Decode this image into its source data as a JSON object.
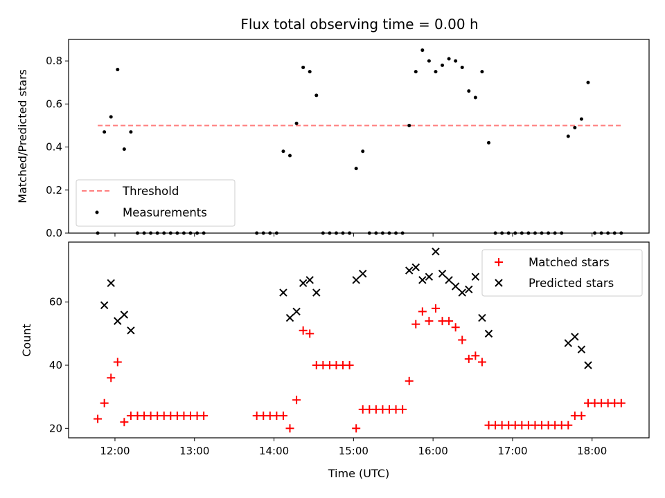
{
  "chart_data": [
    {
      "type": "scatter",
      "title": "Flux total observing time = 0.00 h",
      "xlabel": "",
      "ylabel": "Matched/Predicted stars",
      "ylim": [
        0,
        0.9
      ],
      "yticks": [
        0.0,
        0.2,
        0.4,
        0.6,
        0.8
      ],
      "ytick_labels": [
        "0.0",
        "0.2",
        "0.4",
        "0.6",
        "0.8"
      ],
      "xlim": [
        "11:25",
        "18:43"
      ],
      "grid": false,
      "legend_position": "lower-left",
      "threshold": {
        "name": "Threshold",
        "y": 0.5,
        "x_start": "11:47",
        "x_end": "18:22",
        "color": "#ff7f7f"
      },
      "series": [
        {
          "name": "Measurements",
          "color": "#000000",
          "points": [
            [
              "11:47",
              0.0
            ],
            [
              "11:52",
              0.47
            ],
            [
              "11:57",
              0.54
            ],
            [
              "12:02",
              0.76
            ],
            [
              "12:07",
              0.39
            ],
            [
              "12:12",
              0.47
            ],
            [
              "12:17",
              0.0
            ],
            [
              "12:22",
              0.0
            ],
            [
              "12:27",
              0.0
            ],
            [
              "12:32",
              0.0
            ],
            [
              "12:37",
              0.0
            ],
            [
              "12:42",
              0.0
            ],
            [
              "12:47",
              0.0
            ],
            [
              "12:52",
              0.0
            ],
            [
              "12:57",
              0.0
            ],
            [
              "13:02",
              0.0
            ],
            [
              "13:07",
              0.0
            ],
            [
              "13:47",
              0.0
            ],
            [
              "13:52",
              0.0
            ],
            [
              "13:57",
              0.0
            ],
            [
              "14:02",
              0.0
            ],
            [
              "14:07",
              0.38
            ],
            [
              "14:12",
              0.36
            ],
            [
              "14:17",
              0.51
            ],
            [
              "14:22",
              0.77
            ],
            [
              "14:27",
              0.75
            ],
            [
              "14:32",
              0.64
            ],
            [
              "14:37",
              0.0
            ],
            [
              "14:42",
              0.0
            ],
            [
              "14:47",
              0.0
            ],
            [
              "14:52",
              0.0
            ],
            [
              "14:57",
              0.0
            ],
            [
              "15:02",
              0.3
            ],
            [
              "15:07",
              0.38
            ],
            [
              "15:12",
              0.0
            ],
            [
              "15:17",
              0.0
            ],
            [
              "15:22",
              0.0
            ],
            [
              "15:27",
              0.0
            ],
            [
              "15:32",
              0.0
            ],
            [
              "15:37",
              0.0
            ],
            [
              "15:42",
              0.5
            ],
            [
              "15:47",
              0.75
            ],
            [
              "15:52",
              0.85
            ],
            [
              "15:57",
              0.8
            ],
            [
              "16:02",
              0.75
            ],
            [
              "16:07",
              0.78
            ],
            [
              "16:12",
              0.81
            ],
            [
              "16:17",
              0.8
            ],
            [
              "16:22",
              0.77
            ],
            [
              "16:27",
              0.66
            ],
            [
              "16:32",
              0.63
            ],
            [
              "16:37",
              0.75
            ],
            [
              "16:42",
              0.42
            ],
            [
              "16:47",
              0.0
            ],
            [
              "16:52",
              0.0
            ],
            [
              "16:57",
              0.0
            ],
            [
              "17:02",
              0.0
            ],
            [
              "17:07",
              0.0
            ],
            [
              "17:12",
              0.0
            ],
            [
              "17:17",
              0.0
            ],
            [
              "17:22",
              0.0
            ],
            [
              "17:27",
              0.0
            ],
            [
              "17:32",
              0.0
            ],
            [
              "17:37",
              0.0
            ],
            [
              "17:42",
              0.45
            ],
            [
              "17:47",
              0.49
            ],
            [
              "17:52",
              0.53
            ],
            [
              "17:57",
              0.7
            ],
            [
              "18:02",
              0.0
            ],
            [
              "18:07",
              0.0
            ],
            [
              "18:12",
              0.0
            ],
            [
              "18:17",
              0.0
            ],
            [
              "18:22",
              0.0
            ]
          ]
        }
      ]
    },
    {
      "type": "scatter",
      "title": "",
      "xlabel": "Time (UTC)",
      "ylabel": "Count",
      "ylim": [
        17,
        79
      ],
      "yticks": [
        20,
        40,
        60
      ],
      "ytick_labels": [
        "20",
        "40",
        "60"
      ],
      "xlim": [
        "11:25",
        "18:43"
      ],
      "xticks": [
        "12:00",
        "13:00",
        "14:00",
        "15:00",
        "16:00",
        "17:00",
        "18:00"
      ],
      "grid": false,
      "legend_position": "upper-right",
      "series": [
        {
          "name": "Matched stars",
          "marker": "plus",
          "color": "#ff0000",
          "points": [
            [
              "11:47",
              23
            ],
            [
              "11:52",
              28
            ],
            [
              "11:57",
              36
            ],
            [
              "12:02",
              41
            ],
            [
              "12:07",
              22
            ],
            [
              "12:12",
              24
            ],
            [
              "12:17",
              24
            ],
            [
              "12:22",
              24
            ],
            [
              "12:27",
              24
            ],
            [
              "12:32",
              24
            ],
            [
              "12:37",
              24
            ],
            [
              "12:42",
              24
            ],
            [
              "12:47",
              24
            ],
            [
              "12:52",
              24
            ],
            [
              "12:57",
              24
            ],
            [
              "13:02",
              24
            ],
            [
              "13:07",
              24
            ],
            [
              "13:47",
              24
            ],
            [
              "13:52",
              24
            ],
            [
              "13:57",
              24
            ],
            [
              "14:02",
              24
            ],
            [
              "14:07",
              24
            ],
            [
              "14:12",
              20
            ],
            [
              "14:17",
              29
            ],
            [
              "14:22",
              51
            ],
            [
              "14:27",
              50
            ],
            [
              "14:32",
              40
            ],
            [
              "14:37",
              40
            ],
            [
              "14:42",
              40
            ],
            [
              "14:47",
              40
            ],
            [
              "14:52",
              40
            ],
            [
              "14:57",
              40
            ],
            [
              "15:02",
              20
            ],
            [
              "15:07",
              26
            ],
            [
              "15:12",
              26
            ],
            [
              "15:17",
              26
            ],
            [
              "15:22",
              26
            ],
            [
              "15:27",
              26
            ],
            [
              "15:32",
              26
            ],
            [
              "15:37",
              26
            ],
            [
              "15:42",
              35
            ],
            [
              "15:47",
              53
            ],
            [
              "15:52",
              57
            ],
            [
              "15:57",
              54
            ],
            [
              "16:02",
              58
            ],
            [
              "16:07",
              54
            ],
            [
              "16:12",
              54
            ],
            [
              "16:17",
              52
            ],
            [
              "16:22",
              48
            ],
            [
              "16:27",
              42
            ],
            [
              "16:32",
              43
            ],
            [
              "16:37",
              41
            ],
            [
              "16:42",
              21
            ],
            [
              "16:47",
              21
            ],
            [
              "16:52",
              21
            ],
            [
              "16:57",
              21
            ],
            [
              "17:02",
              21
            ],
            [
              "17:07",
              21
            ],
            [
              "17:12",
              21
            ],
            [
              "17:17",
              21
            ],
            [
              "17:22",
              21
            ],
            [
              "17:27",
              21
            ],
            [
              "17:32",
              21
            ],
            [
              "17:37",
              21
            ],
            [
              "17:42",
              21
            ],
            [
              "17:47",
              24
            ],
            [
              "17:52",
              24
            ],
            [
              "17:57",
              28
            ],
            [
              "18:02",
              28
            ],
            [
              "18:07",
              28
            ],
            [
              "18:12",
              28
            ],
            [
              "18:17",
              28
            ],
            [
              "18:22",
              28
            ]
          ]
        },
        {
          "name": "Predicted stars",
          "marker": "x",
          "color": "#000000",
          "points": [
            [
              "11:52",
              59
            ],
            [
              "11:57",
              66
            ],
            [
              "12:02",
              54
            ],
            [
              "12:07",
              56
            ],
            [
              "12:12",
              51
            ],
            [
              "14:07",
              63
            ],
            [
              "14:12",
              55
            ],
            [
              "14:17",
              57
            ],
            [
              "14:22",
              66
            ],
            [
              "14:27",
              67
            ],
            [
              "14:32",
              63
            ],
            [
              "15:02",
              67
            ],
            [
              "15:07",
              69
            ],
            [
              "15:42",
              70
            ],
            [
              "15:47",
              71
            ],
            [
              "15:52",
              67
            ],
            [
              "15:57",
              68
            ],
            [
              "16:02",
              76
            ],
            [
              "16:07",
              69
            ],
            [
              "16:12",
              67
            ],
            [
              "16:17",
              65
            ],
            [
              "16:22",
              63
            ],
            [
              "16:27",
              64
            ],
            [
              "16:32",
              68
            ],
            [
              "16:37",
              55
            ],
            [
              "16:42",
              50
            ],
            [
              "17:42",
              47
            ],
            [
              "17:47",
              49
            ],
            [
              "17:52",
              45
            ],
            [
              "17:57",
              40
            ]
          ]
        }
      ]
    }
  ]
}
